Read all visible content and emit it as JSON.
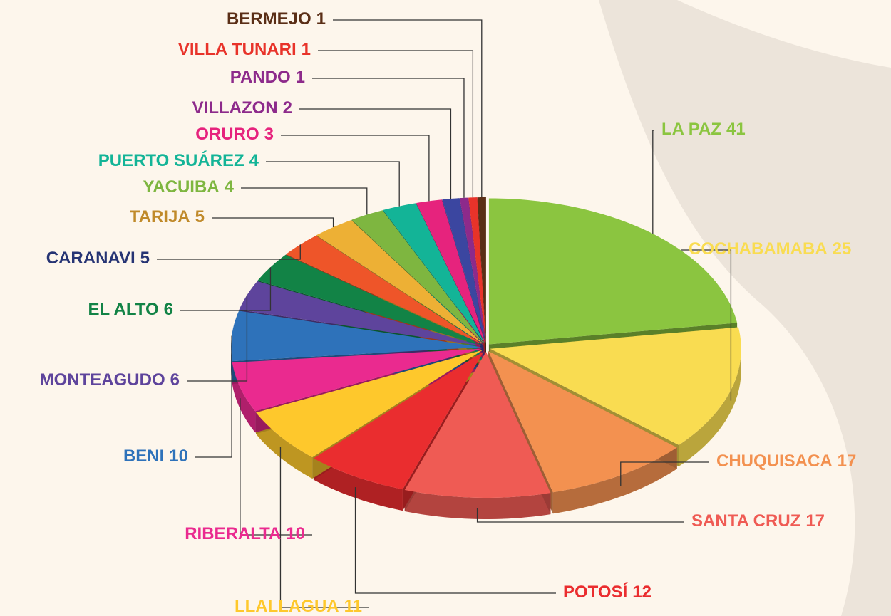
{
  "chart_data": {
    "type": "pie3d",
    "categories": [
      "LA PAZ",
      "COCHABAMABA",
      "CHUQUISACA",
      "SANTA CRUZ",
      "POTOSÍ",
      "LLALLAGUA",
      "RIBERALTA",
      "BENI",
      "MONTEAGUDO",
      "EL ALTO",
      "CARANAVI",
      "TARIJA",
      "YACUIBA",
      "PUERTO SUÁREZ",
      "ORURO",
      "VILLAZON",
      "PANDO",
      "VILLA TUNARI",
      "BERMEJO"
    ],
    "values": [
      41,
      25,
      17,
      17,
      12,
      11,
      10,
      10,
      6,
      6,
      5,
      5,
      4,
      4,
      3,
      2,
      1,
      1,
      1
    ],
    "colors": [
      "#8bc540",
      "#f9dc51",
      "#f39150",
      "#ef5b54",
      "#ea2d2f",
      "#fec82c",
      "#ea2a8f",
      "#2e72ba",
      "#5e449c",
      "#128346",
      "#ee5529",
      "#edb035",
      "#7eb640",
      "#13b497",
      "#e6237d",
      "#3b46a0",
      "#8d2a8b",
      "#e8332a",
      "#5a2e16"
    ],
    "label_colors": [
      "#8bc540",
      "#f9dc51",
      "#f39150",
      "#ef5b54",
      "#ea2d2f",
      "#fec82c",
      "#ea2a8f",
      "#2e72ba",
      "#5e449c",
      "#128346",
      "#263474",
      "#c08a2a",
      "#7eb640",
      "#13b497",
      "#e6237d",
      "#8d2a8b",
      "#8d2a8b",
      "#e8332a",
      "#5a2e16"
    ]
  }
}
